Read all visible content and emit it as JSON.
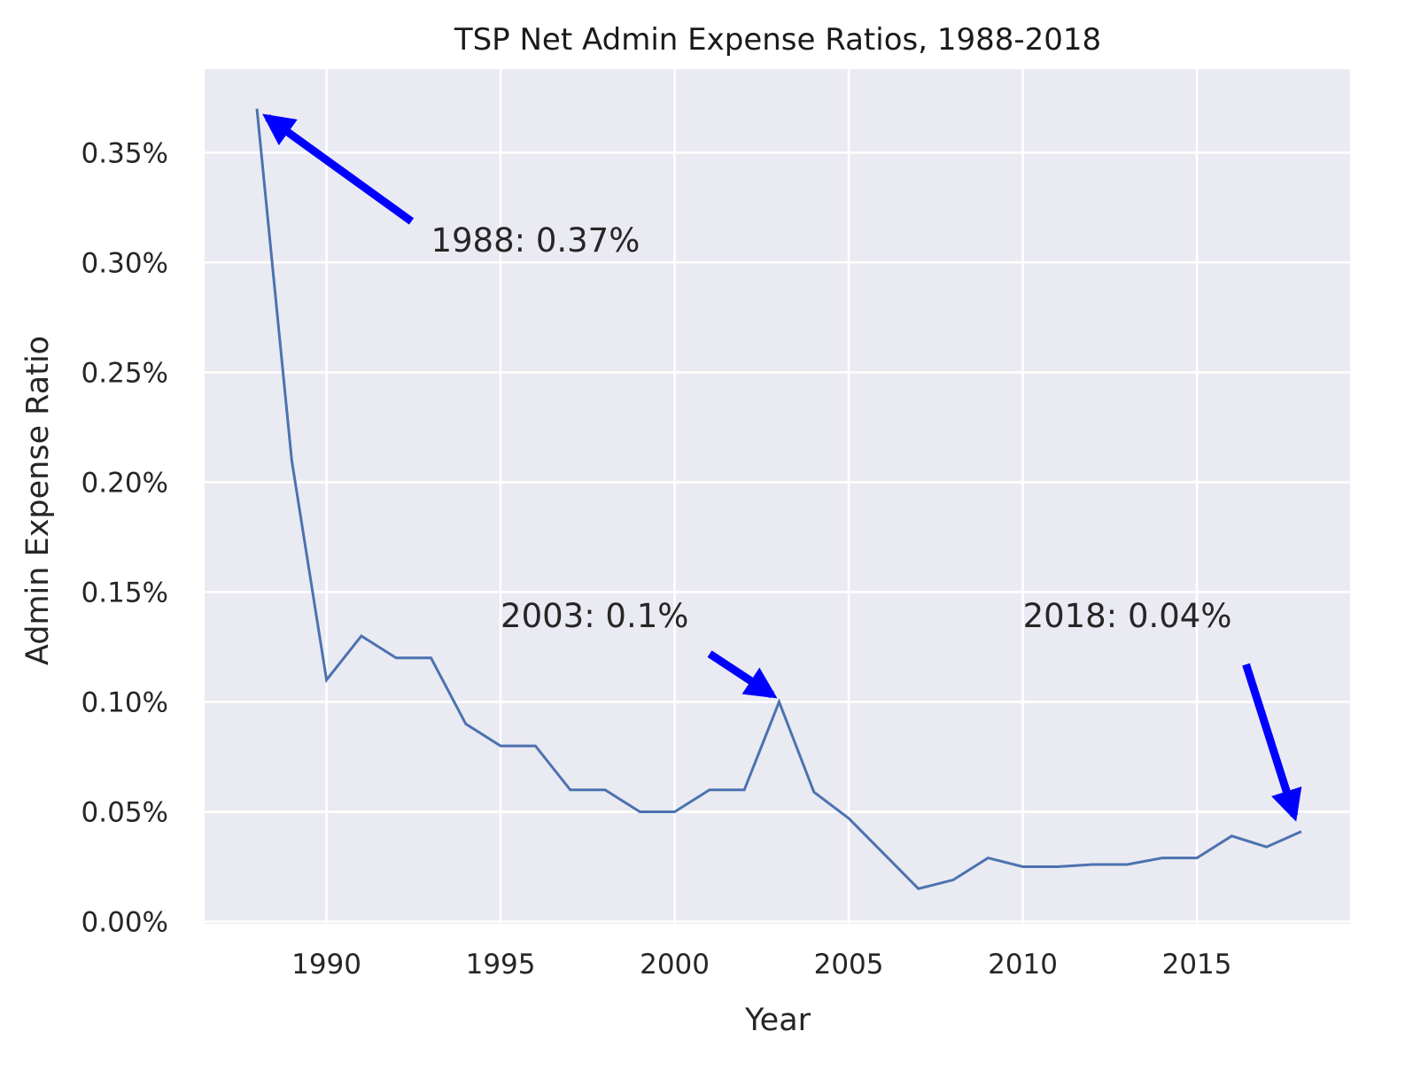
{
  "chart_data": {
    "type": "line",
    "title": "TSP Net Admin Expense Ratios, 1988-2018",
    "xlabel": "Year",
    "ylabel": "Admin Expense Ratio",
    "xlim": [
      1986.5,
      2019.4
    ],
    "ylim": [
      -0.001,
      0.388
    ],
    "grid": true,
    "x_ticks": [
      1990,
      1995,
      2000,
      2005,
      2010,
      2015
    ],
    "x_tick_labels": [
      "1990",
      "1995",
      "2000",
      "2005",
      "2010",
      "2015"
    ],
    "y_ticks": [
      0,
      0.05,
      0.1,
      0.15,
      0.2,
      0.25,
      0.3,
      0.35
    ],
    "y_tick_labels": [
      "0.00%",
      "0.05%",
      "0.10%",
      "0.15%",
      "0.20%",
      "0.25%",
      "0.30%",
      "0.35%"
    ],
    "x": [
      1988,
      1989,
      1990,
      1991,
      1992,
      1993,
      1994,
      1995,
      1996,
      1997,
      1998,
      1999,
      2000,
      2001,
      2002,
      2003,
      2004,
      2005,
      2006,
      2007,
      2008,
      2009,
      2010,
      2011,
      2012,
      2013,
      2014,
      2015,
      2016,
      2017,
      2018
    ],
    "values": [
      0.37,
      0.21,
      0.11,
      0.13,
      0.12,
      0.12,
      0.09,
      0.08,
      0.08,
      0.06,
      0.06,
      0.05,
      0.05,
      0.06,
      0.06,
      0.1,
      0.059,
      0.047,
      0.031,
      0.015,
      0.019,
      0.029,
      0.025,
      0.025,
      0.026,
      0.026,
      0.029,
      0.029,
      0.039,
      0.034,
      0.041
    ],
    "colors": {
      "line": "#4c72b0",
      "background": "#eaeaf2",
      "grid": "#ffffff",
      "arrow": "#0000ff"
    },
    "annotations": [
      {
        "text": "1988: 0.37%",
        "x": 1988,
        "y": 0.37,
        "text_x": 1993,
        "text_y": 0.305
      },
      {
        "text": "2003: 0.1%",
        "x": 2003,
        "y": 0.1,
        "text_x": 1995,
        "text_y": 0.134
      },
      {
        "text": "2018: 0.04%",
        "x": 2018,
        "y": 0.041,
        "text_x": 2010,
        "text_y": 0.134
      }
    ]
  }
}
